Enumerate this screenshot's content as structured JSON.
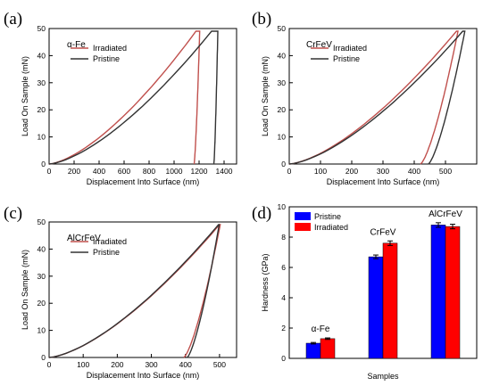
{
  "chart_data": [
    {
      "panel": "(a)",
      "type": "line",
      "annotation": "α-Fe",
      "xlabel": "Displacement Into Surface (nm)",
      "ylabel": "Load On Sample (mN)",
      "xlim": [
        0,
        1500
      ],
      "ylim": [
        0,
        50
      ],
      "xticks": [
        0,
        200,
        400,
        600,
        800,
        1000,
        1200,
        1400
      ],
      "yticks": [
        0,
        10,
        20,
        30,
        40,
        50
      ],
      "legend_position": "top-left",
      "series": [
        {
          "name": "Irradiated",
          "color": "#c0504d",
          "loading": {
            "x0": 0,
            "xmax": 1175,
            "curvature": 1.5
          },
          "hold": [
            1175,
            1205
          ],
          "unloading": {
            "xend": 1160
          }
        },
        {
          "name": "Pristine",
          "color": "#333333",
          "loading": {
            "x0": 0,
            "xmax": 1300,
            "curvature": 1.5
          },
          "hold": [
            1300,
            1350
          ],
          "unloading": {
            "xend": 1318
          }
        }
      ],
      "ymax_load": 49
    },
    {
      "panel": "(b)",
      "type": "line",
      "annotation": "CrFeV",
      "xlabel": "Displacement Into Surface (nm)",
      "ylabel": "Load On Sample (mN)",
      "xlim": [
        0,
        600
      ],
      "ylim": [
        0,
        50
      ],
      "xticks": [
        0,
        100,
        200,
        300,
        400,
        500
      ],
      "yticks": [
        0,
        10,
        20,
        30,
        40,
        50
      ],
      "legend_position": "top-left",
      "series": [
        {
          "name": "Irradiated",
          "color": "#c0504d",
          "loading": {
            "x0": 0,
            "xmax": 535,
            "curvature": 1.5
          },
          "hold": [
            535,
            540
          ],
          "unloading": {
            "xend": 420
          }
        },
        {
          "name": "Pristine",
          "color": "#333333",
          "loading": {
            "x0": 0,
            "xmax": 555,
            "curvature": 1.5
          },
          "hold": [
            555,
            562
          ],
          "unloading": {
            "xend": 445
          }
        }
      ],
      "ymax_load": 49
    },
    {
      "panel": "(c)",
      "type": "line",
      "annotation": "AlCrFeV",
      "xlabel": "Displacement Into Surface (nm)",
      "ylabel": "Load On Sample (mN)",
      "xlim": [
        0,
        550
      ],
      "ylim": [
        0,
        50
      ],
      "xticks": [
        0,
        100,
        200,
        300,
        400,
        500
      ],
      "yticks": [
        0,
        10,
        20,
        30,
        40,
        50
      ],
      "legend_position": "top-left",
      "series": [
        {
          "name": "Irradiated",
          "color": "#c0504d",
          "loading": {
            "x0": 0,
            "xmax": 500,
            "curvature": 1.5
          },
          "hold": [
            500,
            502
          ],
          "unloading": {
            "xend": 395
          }
        },
        {
          "name": "Pristine",
          "color": "#333333",
          "loading": {
            "x0": 0,
            "xmax": 497,
            "curvature": 1.5
          },
          "hold": [
            497,
            499
          ],
          "unloading": {
            "xend": 405
          }
        }
      ],
      "ymax_load": 49
    },
    {
      "panel": "(d)",
      "type": "bar",
      "xlabel": "Samples",
      "ylabel": "Hardness (GPa)",
      "ylim": [
        0,
        10
      ],
      "yticks": [
        0,
        2,
        4,
        6,
        8,
        10
      ],
      "categories": [
        "α-Fe",
        "CrFeV",
        "AlCrFeV"
      ],
      "legend_position": "top-left",
      "series": [
        {
          "name": "Pristine",
          "color": "#0000ff",
          "values": [
            1.0,
            6.7,
            8.8
          ],
          "errors": [
            0.05,
            0.12,
            0.15
          ]
        },
        {
          "name": "Irradiated",
          "color": "#ff0000",
          "values": [
            1.3,
            7.6,
            8.7
          ],
          "errors": [
            0.05,
            0.15,
            0.15
          ]
        }
      ]
    }
  ]
}
